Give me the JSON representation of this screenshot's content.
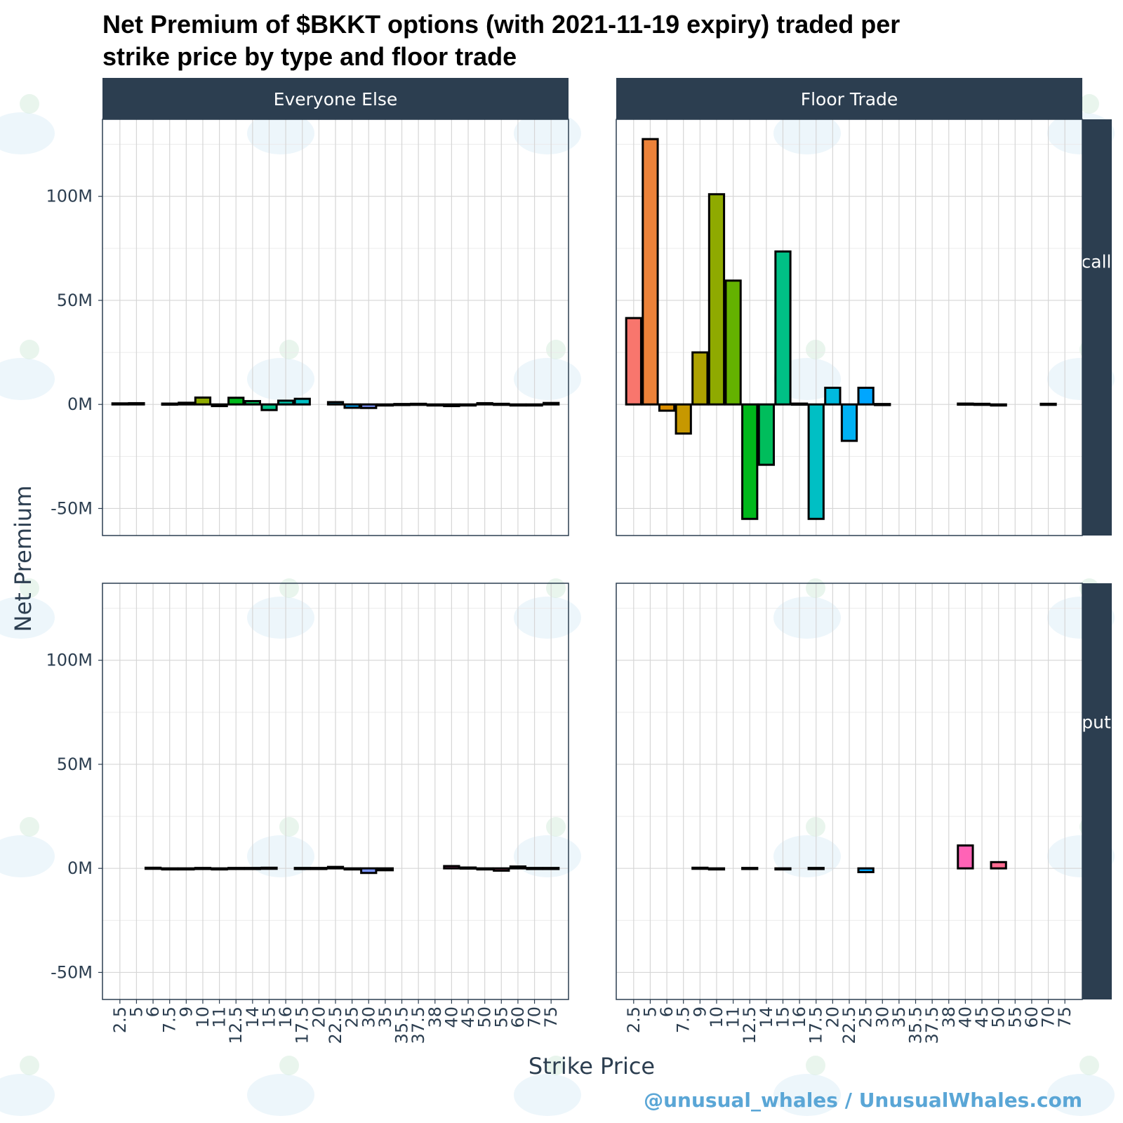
{
  "title_line1": "Net Premium of $BKKT options (with 2021-11-19 expiry) traded per",
  "title_line2": "strike price by type and floor trade",
  "xlabel": "Strike Price",
  "ylabel": "Net Premium",
  "credit": "@unusual_whales / UnusualWhales.com",
  "colors": {
    "strip": "#2c3e50",
    "bar_outline": "#000000",
    "text": "#2c3e50"
  },
  "chart_data": {
    "type": "bar",
    "facets": {
      "columns": [
        "Everyone Else",
        "Floor Trade"
      ],
      "rows": [
        "call",
        "put"
      ]
    },
    "ylim": [
      -63000000,
      137000000
    ],
    "yticks": [
      -50000000,
      0,
      50000000,
      100000000
    ],
    "ytick_labels": [
      "-50M",
      "0M",
      "50M",
      "100M"
    ],
    "grid": true,
    "legend": "none",
    "categories": [
      "2.5",
      "5",
      "6",
      "7.5",
      "9",
      "10",
      "11",
      "12.5",
      "14",
      "15",
      "16",
      "17.5",
      "20",
      "22.5",
      "25",
      "30",
      "35",
      "35.5",
      "37.5",
      "38",
      "40",
      "45",
      "50",
      "55",
      "60",
      "70",
      "75"
    ],
    "category_colors": [
      "#F8766D",
      "#EC8239",
      "#DB8E00",
      "#C79800",
      "#AEA200",
      "#8FAA00",
      "#64B200",
      "#00B81B",
      "#00BD5C",
      "#00C085",
      "#00C1A7",
      "#00BFC4",
      "#00BADE",
      "#00B2F3",
      "#00A6FF",
      "#7C96FF",
      "#B385FF",
      "#D874FD",
      "#EF67EB",
      "#FD61D3",
      "#FF63B6",
      "#FF6B94",
      "#FF6C91",
      "#FF6A98",
      "#FF69A0",
      "#FF67A8",
      "#FF66AE"
    ],
    "panels": [
      {
        "facet_col": "Everyone Else",
        "facet_row": "call",
        "values": [
          500000,
          600000,
          null,
          400000,
          800000,
          3300000,
          -800000,
          3200000,
          1600000,
          -2700000,
          1800000,
          2700000,
          null,
          1100000,
          -1600000,
          -1700000,
          -400000,
          200000,
          300000,
          -300000,
          -800000,
          -400000,
          600000,
          300000,
          -300000,
          -300000,
          700000
        ]
      },
      {
        "facet_col": "Floor Trade",
        "facet_row": "call",
        "values": [
          41500000,
          127500000,
          -3000000,
          -14000000,
          25000000,
          101000000,
          59500000,
          -55000000,
          -29000000,
          73500000,
          400000,
          -55000000,
          8000000,
          -17500000,
          8000000,
          200000,
          null,
          null,
          null,
          null,
          400000,
          300000,
          -300000,
          null,
          null,
          300000,
          null
        ]
      },
      {
        "facet_col": "Everyone Else",
        "facet_row": "put",
        "values": [
          null,
          null,
          300000,
          -300000,
          -300000,
          200000,
          -300000,
          200000,
          200000,
          300000,
          null,
          200000,
          200000,
          700000,
          -500000,
          -2200000,
          -900000,
          null,
          null,
          null,
          1100000,
          400000,
          -400000,
          -1100000,
          900000,
          200000,
          200000
        ]
      },
      {
        "facet_col": "Floor Trade",
        "facet_row": "put",
        "values": [
          null,
          null,
          null,
          null,
          300000,
          -400000,
          null,
          200000,
          null,
          -300000,
          null,
          200000,
          null,
          null,
          -1800000,
          null,
          null,
          null,
          null,
          null,
          11000000,
          null,
          3000000,
          null,
          null,
          null,
          null
        ]
      }
    ]
  }
}
